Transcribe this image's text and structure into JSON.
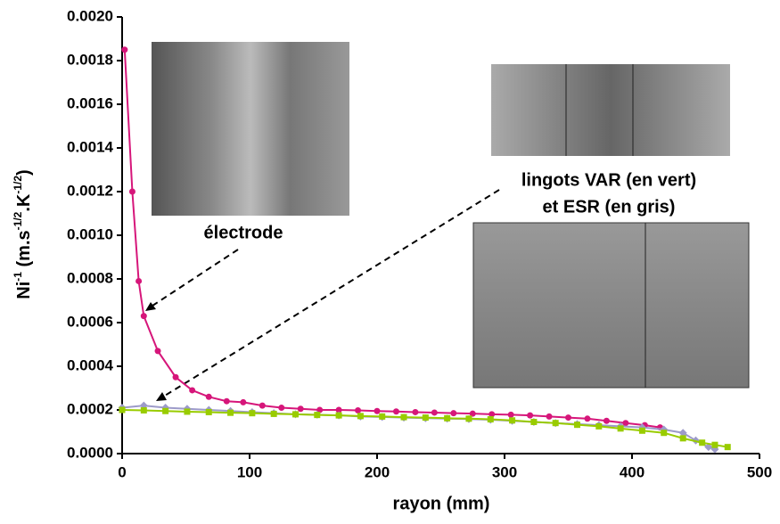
{
  "chart_data": {
    "type": "line",
    "ylabel": [
      {
        "text": "Ni"
      },
      {
        "text": "-1",
        "sup": true
      },
      {
        "text": " (m.s"
      },
      {
        "text": "-1/2",
        "sup": true
      },
      {
        "text": ".K"
      },
      {
        "text": "-1/2",
        "sup": true
      },
      {
        "text": ")"
      }
    ],
    "xlabel": "rayon (mm)",
    "annotations": [
      "électrode",
      "lingots VAR (en vert)",
      "et ESR (en gris)"
    ],
    "xlim": [
      0,
      500
    ],
    "xticks": [
      0,
      100,
      200,
      300,
      400,
      500
    ],
    "ylim": [
      0,
      0.002
    ],
    "yticks": [
      {
        "value": 0,
        "label": "0.0000"
      },
      {
        "value": 0.0002,
        "label": "0.0002"
      },
      {
        "value": 0.0004,
        "label": "0.0004"
      },
      {
        "value": 0.0006,
        "label": "0.0006"
      },
      {
        "value": 0.0008,
        "label": "0.0008"
      },
      {
        "value": 0.001,
        "label": "0.0010"
      },
      {
        "value": 0.0012,
        "label": "0.0012"
      },
      {
        "value": 0.0014,
        "label": "0.0014"
      },
      {
        "value": 0.0016,
        "label": "0.0016"
      },
      {
        "value": 0.0018,
        "label": "0.0018"
      },
      {
        "value": 0.002,
        "label": "0.0020"
      }
    ],
    "series": [
      {
        "color": "#d6167a",
        "marker": "circle",
        "x": [
          2,
          8,
          13,
          17,
          28,
          42,
          55,
          68,
          82,
          95,
          110,
          125,
          140,
          155,
          170,
          185,
          200,
          215,
          230,
          245,
          260,
          275,
          290,
          305,
          320,
          335,
          350,
          365,
          380,
          395,
          410,
          422
        ],
        "values": [
          0.00185,
          0.0012,
          0.00079,
          0.00063,
          0.00047,
          0.00035,
          0.00029,
          0.00026,
          0.00024,
          0.000235,
          0.00022,
          0.00021,
          0.000205,
          0.0002,
          0.0002,
          0.000198,
          0.000195,
          0.000193,
          0.00019,
          0.000188,
          0.000185,
          0.000183,
          0.00018,
          0.000178,
          0.000175,
          0.00017,
          0.000165,
          0.00016,
          0.00015,
          0.00014,
          0.00013,
          0.00012
        ]
      },
      {
        "color": "#9d9bc9",
        "marker": "diamond",
        "x": [
          0,
          17,
          34,
          51,
          68,
          85,
          102,
          119,
          136,
          153,
          170,
          187,
          204,
          221,
          238,
          255,
          272,
          289,
          306,
          323,
          340,
          357,
          374,
          391,
          408,
          425,
          440,
          450,
          460,
          465
        ],
        "values": [
          0.00021,
          0.00022,
          0.00021,
          0.000205,
          0.0002,
          0.000195,
          0.00019,
          0.000185,
          0.00018,
          0.000178,
          0.000175,
          0.00017,
          0.000168,
          0.000165,
          0.000162,
          0.00016,
          0.000158,
          0.000155,
          0.00015,
          0.000145,
          0.00014,
          0.000135,
          0.00013,
          0.000125,
          0.00012,
          0.00011,
          9.5e-05,
          6e-05,
          3e-05,
          2e-05
        ]
      },
      {
        "color": "#99cc00",
        "marker": "square",
        "x": [
          0,
          17,
          34,
          51,
          68,
          85,
          102,
          119,
          136,
          153,
          170,
          187,
          204,
          221,
          238,
          255,
          272,
          289,
          306,
          323,
          340,
          357,
          374,
          391,
          408,
          425,
          440,
          455,
          465,
          475
        ],
        "values": [
          0.0002,
          0.000198,
          0.000195,
          0.000192,
          0.00019,
          0.000187,
          0.000185,
          0.000182,
          0.00018,
          0.000177,
          0.000175,
          0.000172,
          0.00017,
          0.000167,
          0.000165,
          0.000162,
          0.00016,
          0.000157,
          0.000152,
          0.000145,
          0.00014,
          0.000132,
          0.000125,
          0.000115,
          0.000105,
          9.5e-05,
          7e-05,
          5e-05,
          4e-05,
          3e-05
        ]
      }
    ]
  }
}
